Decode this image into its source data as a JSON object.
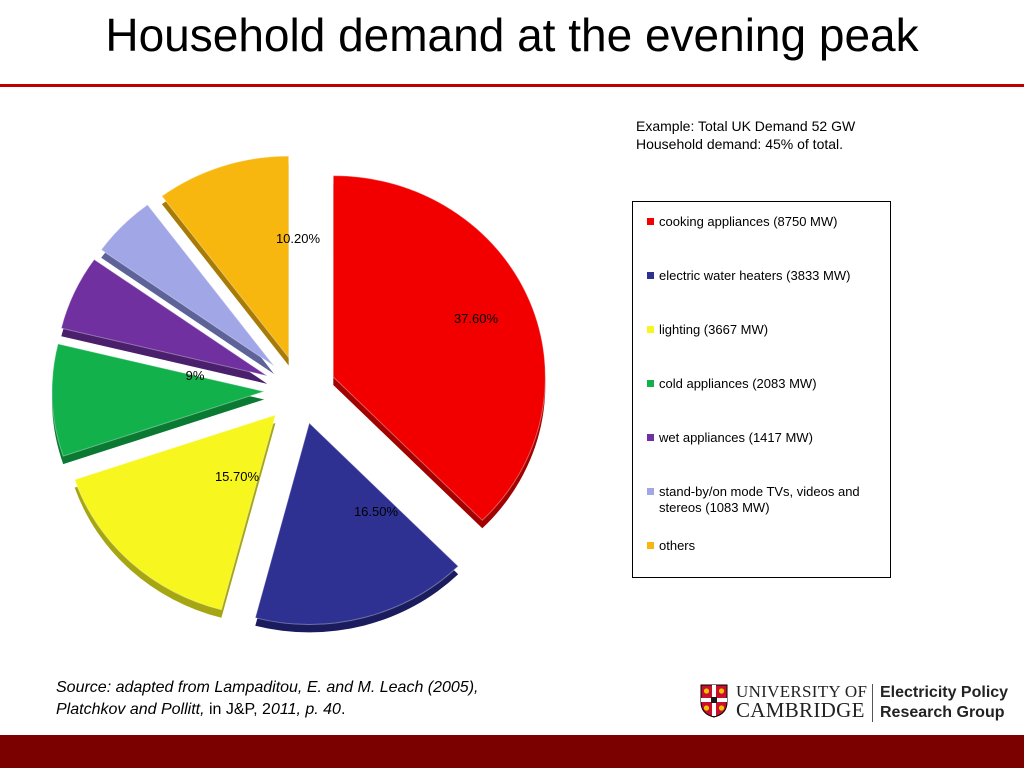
{
  "slide": {
    "title": "Household demand at the evening peak",
    "note_line1": "Example: Total UK Demand 52 GW",
    "note_line2": "Household demand: 45% of total.",
    "source_part1": "Source: adapted from Lampaditou, E. and M. Leach (2005),",
    "source_part2": "Platchkov and Pollitt,",
    "source_part3": " in J&P, 2",
    "source_part4": "011, p. 40",
    "source_part5": "."
  },
  "logo": {
    "university_line1": "UNIVERSITY OF",
    "university_line2": "CAMBRIDGE",
    "group_line1": "Electricity Policy",
    "group_line2": "Research Group",
    "crest_icon": "cambridge-crest-icon"
  },
  "colors": {
    "title_rule": "#c00000",
    "footer": "#7b0000"
  },
  "chart_data": {
    "type": "pie",
    "title": "",
    "legend_position": "right",
    "slices": [
      {
        "label": "cooking appliances (8750 MW)",
        "value": 37.6,
        "value_label": "37.60%",
        "color": "#f20000",
        "shadow": "#a30000"
      },
      {
        "label": "electric water heaters (3833 MW)",
        "value": 16.5,
        "value_label": "16.50%",
        "color": "#2e3192",
        "shadow": "#1a1c5e"
      },
      {
        "label": "lighting (3667 MW)",
        "value": 15.7,
        "value_label": "15.70%",
        "color": "#f7f71f",
        "shadow": "#a6a612"
      },
      {
        "label": "cold appliances (2083 MW)",
        "value": 9,
        "value_label": "9%",
        "color": "#12b14c",
        "shadow": "#0a7a33"
      },
      {
        "label": "wet appliances (1417 MW)",
        "value": 6,
        "value_label": "6%",
        "color": "#7030a0",
        "shadow": "#4a1f6b"
      },
      {
        "label": "stand-by/on mode TVs, videos and stereos (1083 MW)",
        "value": 5,
        "value_label": "5%",
        "color": "#a0a6e6",
        "shadow": "#5d6299"
      },
      {
        "label": "others",
        "value": 10.2,
        "value_label": "10.20%",
        "color": "#f8b70f",
        "shadow": "#a87a06"
      }
    ]
  }
}
